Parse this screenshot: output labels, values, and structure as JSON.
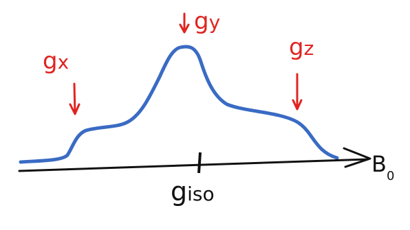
{
  "labels": [
    {
      "main": "g",
      "sub": "x"
    },
    {
      "main": "g",
      "sub": "y"
    },
    {
      "main": "g",
      "sub": "z"
    },
    {
      "main": "g",
      "sub": "iso"
    },
    {
      "main": "B",
      "sub": "0"
    }
  ]
}
